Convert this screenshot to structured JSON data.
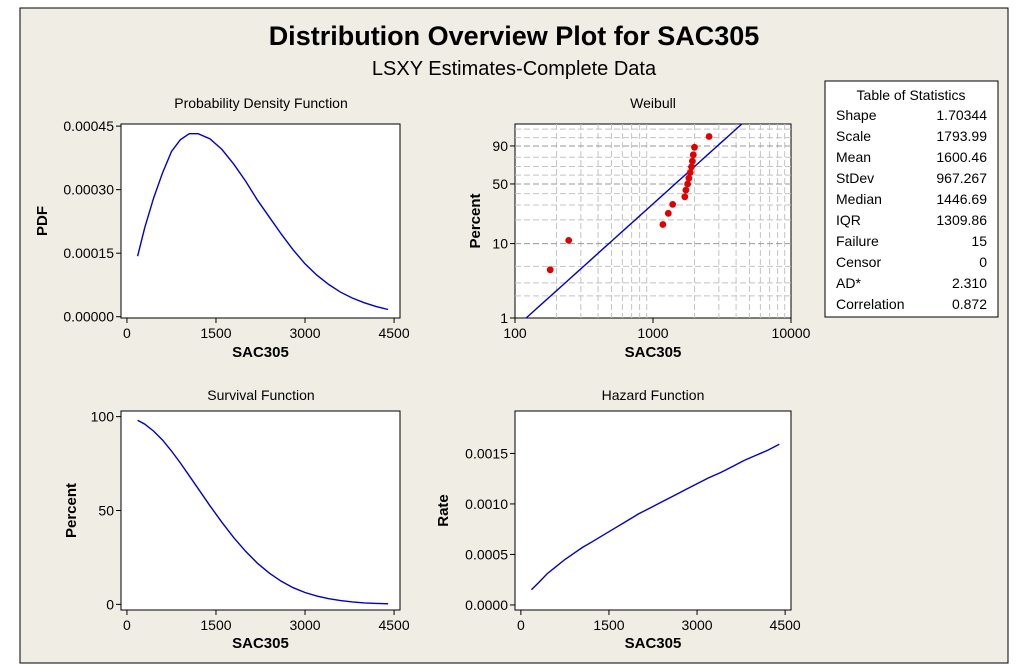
{
  "title": "Distribution Overview Plot for SAC305",
  "subtitle": "LSXY Estimates-Complete Data",
  "stats": {
    "title": "Table of Statistics",
    "rows": [
      {
        "label": "Shape",
        "value": "1.70344"
      },
      {
        "label": "Scale",
        "value": "1793.99"
      },
      {
        "label": "Mean",
        "value": "1600.46"
      },
      {
        "label": "StDev",
        "value": "967.267"
      },
      {
        "label": "Median",
        "value": "1446.69"
      },
      {
        "label": "IQR",
        "value": "1309.86"
      },
      {
        "label": "Failure",
        "value": "15"
      },
      {
        "label": "Censor",
        "value": "0"
      },
      {
        "label": "AD*",
        "value": "2.310"
      },
      {
        "label": "Correlation",
        "value": "0.872"
      }
    ]
  },
  "colors": {
    "line": "#0000cc",
    "points": "#e00000",
    "background": "#efede4"
  },
  "chart_data": [
    {
      "id": "pdf",
      "type": "line",
      "title": "Probability Density Function",
      "xlabel": "SAC305",
      "ylabel": "PDF",
      "xlim": [
        -100,
        4600
      ],
      "ylim": [
        -3e-06,
        0.000455
      ],
      "xticks": [
        {
          "v": 0,
          "label": "0"
        },
        {
          "v": 1500,
          "label": "1500"
        },
        {
          "v": 3000,
          "label": "3000"
        },
        {
          "v": 4500,
          "label": "4500"
        }
      ],
      "yticks": [
        {
          "v": 0,
          "label": "0.00000"
        },
        {
          "v": 0.00015,
          "label": "0.00015"
        },
        {
          "v": 0.0003,
          "label": "0.00030"
        },
        {
          "v": 0.00045,
          "label": "0.00045"
        }
      ],
      "x": [
        180,
        300,
        450,
        600,
        750,
        900,
        1050,
        1200,
        1400,
        1600,
        1800,
        2000,
        2200,
        2400,
        2600,
        2800,
        3000,
        3200,
        3400,
        3600,
        3800,
        4000,
        4200,
        4400
      ],
      "y": [
        0.000143,
        0.00021,
        0.00028,
        0.00034,
        0.00039,
        0.000418,
        0.000432,
        0.000432,
        0.00042,
        0.000395,
        0.00036,
        0.00032,
        0.000275,
        0.000235,
        0.000195,
        0.000158,
        0.000125,
        9.8e-05,
        7.6e-05,
        5.8e-05,
        4.4e-05,
        3.3e-05,
        2.4e-05,
        1.7e-05
      ]
    },
    {
      "id": "weibull",
      "type": "scatter",
      "scale": "weibull",
      "title": "Weibull",
      "xlabel": "SAC305",
      "ylabel": "Percent",
      "xlim": [
        100,
        10000
      ],
      "ylim": [
        1,
        99
      ],
      "xticks": [
        {
          "v": 100,
          "label": "100"
        },
        {
          "v": 1000,
          "label": "1000"
        },
        {
          "v": 10000,
          "label": "10000"
        }
      ],
      "yticks": [
        {
          "v": 1,
          "label": "1"
        },
        {
          "v": 10,
          "label": "10"
        },
        {
          "v": 50,
          "label": "50"
        },
        {
          "v": 90,
          "label": "90"
        }
      ],
      "fit_line": {
        "shape": 1.70344,
        "scale": 1793.99
      },
      "points": [
        {
          "x": 180,
          "y": 4.5
        },
        {
          "x": 245,
          "y": 11.0
        },
        {
          "x": 1180,
          "y": 17.5
        },
        {
          "x": 1290,
          "y": 24.0
        },
        {
          "x": 1390,
          "y": 30.5
        },
        {
          "x": 1700,
          "y": 37.0
        },
        {
          "x": 1730,
          "y": 43.5
        },
        {
          "x": 1780,
          "y": 50.0
        },
        {
          "x": 1820,
          "y": 56.5
        },
        {
          "x": 1860,
          "y": 63.0
        },
        {
          "x": 1900,
          "y": 69.5
        },
        {
          "x": 1930,
          "y": 76.0
        },
        {
          "x": 1960,
          "y": 82.5
        },
        {
          "x": 2000,
          "y": 89.0
        },
        {
          "x": 2550,
          "y": 95.5
        }
      ]
    },
    {
      "id": "survival",
      "type": "line",
      "title": "Survival Function",
      "xlabel": "SAC305",
      "ylabel": "Percent",
      "xlim": [
        -100,
        4600
      ],
      "ylim": [
        -3,
        103
      ],
      "xticks": [
        {
          "v": 0,
          "label": "0"
        },
        {
          "v": 1500,
          "label": "1500"
        },
        {
          "v": 3000,
          "label": "3000"
        },
        {
          "v": 4500,
          "label": "4500"
        }
      ],
      "yticks": [
        {
          "v": 0,
          "label": "0"
        },
        {
          "v": 50,
          "label": "50"
        },
        {
          "v": 100,
          "label": "100"
        }
      ],
      "x": [
        180,
        300,
        450,
        600,
        750,
        900,
        1050,
        1200,
        1400,
        1600,
        1800,
        2000,
        2200,
        2400,
        2600,
        2800,
        3000,
        3200,
        3400,
        3600,
        3800,
        4000,
        4200,
        4400
      ],
      "y": [
        98.1,
        96.0,
        92.3,
        87.5,
        81.7,
        75.3,
        68.5,
        61.6,
        52.5,
        43.7,
        35.5,
        28.2,
        21.9,
        16.6,
        12.3,
        8.9,
        6.3,
        4.4,
        3.0,
        2.0,
        1.3,
        0.8,
        0.5,
        0.3
      ]
    },
    {
      "id": "hazard",
      "type": "line",
      "title": "Hazard Function",
      "xlabel": "SAC305",
      "ylabel": "Rate",
      "xlim": [
        -100,
        4600
      ],
      "ylim": [
        -5e-05,
        0.00192
      ],
      "xticks": [
        {
          "v": 0,
          "label": "0"
        },
        {
          "v": 1500,
          "label": "1500"
        },
        {
          "v": 3000,
          "label": "3000"
        },
        {
          "v": 4500,
          "label": "4500"
        }
      ],
      "yticks": [
        {
          "v": 0,
          "label": "0.0000"
        },
        {
          "v": 0.0005,
          "label": "0.0005"
        },
        {
          "v": 0.001,
          "label": "0.0010"
        },
        {
          "v": 0.0015,
          "label": "0.0015"
        }
      ],
      "x": [
        180,
        300,
        450,
        600,
        750,
        900,
        1050,
        1200,
        1400,
        1600,
        1800,
        2000,
        2200,
        2400,
        2600,
        2800,
        3000,
        3200,
        3400,
        3600,
        3800,
        4000,
        4200,
        4400
      ],
      "y": [
        0.00015,
        0.00022,
        0.00031,
        0.00038,
        0.00045,
        0.00051,
        0.00057,
        0.00062,
        0.00069,
        0.00076,
        0.00083,
        0.0009,
        0.00096,
        0.00102,
        0.00108,
        0.00114,
        0.0012,
        0.00126,
        0.00131,
        0.00137,
        0.00143,
        0.00148,
        0.00153,
        0.00159
      ]
    }
  ]
}
